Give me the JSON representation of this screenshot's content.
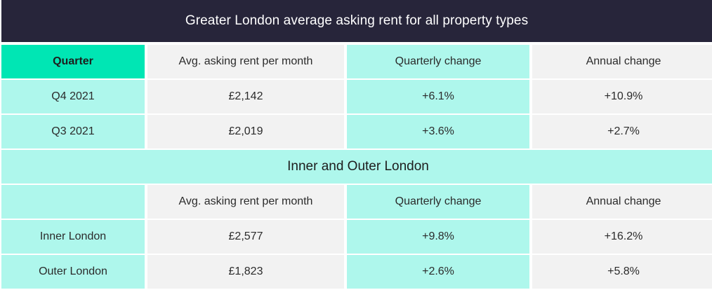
{
  "title": "Greater London average asking rent for all property types",
  "table1": {
    "headers": [
      "Quarter",
      "Avg. asking rent per month",
      "Quarterly change",
      "Annual change"
    ],
    "rows": [
      [
        "Q4 2021",
        "£2,142",
        "+6.1%",
        "+10.9%"
      ],
      [
        "Q3 2021",
        "£2,019",
        "+3.6%",
        "+2.7%"
      ]
    ]
  },
  "section_title": "Inner and Outer London",
  "table2": {
    "headers": [
      "",
      "Avg. asking rent per month",
      "Quarterly change",
      "Annual change"
    ],
    "rows": [
      [
        "Inner London",
        "£2,577",
        "+9.8%",
        "+16.2%"
      ],
      [
        "Outer London",
        "£1,823",
        "+2.6%",
        "+5.8%"
      ]
    ]
  },
  "colors": {
    "title_bg": "#27253a",
    "accent_green": "#00e6b4",
    "teal": "#aef7ec",
    "grey": "#f2f2f2"
  }
}
